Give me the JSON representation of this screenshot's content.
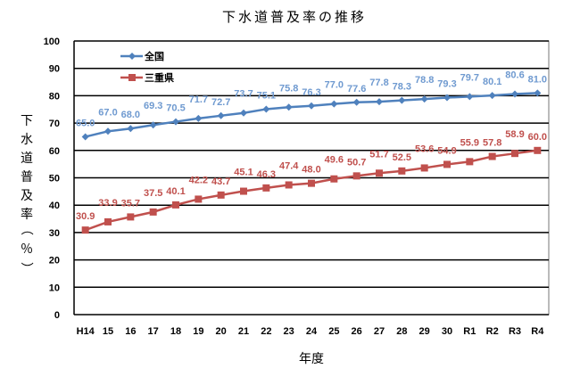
{
  "chart_data": {
    "type": "line",
    "title": "下水道普及率の推移",
    "xlabel": "年度",
    "ylabel": "下水道普及率（％）",
    "ylabel_chars": [
      "下",
      "水",
      "道",
      "普",
      "及",
      "率",
      "（",
      "％",
      "）"
    ],
    "ylim": [
      0,
      100
    ],
    "yticks": [
      0,
      10,
      20,
      30,
      40,
      50,
      60,
      70,
      80,
      90,
      100
    ],
    "grid": true,
    "legend_position": "top-left",
    "categories": [
      "H14",
      "15",
      "16",
      "17",
      "18",
      "19",
      "20",
      "21",
      "22",
      "23",
      "24",
      "25",
      "26",
      "27",
      "28",
      "29",
      "30",
      "R1",
      "R2",
      "R3",
      "R4"
    ],
    "series": [
      {
        "name": "全国",
        "color": "#4f81bd",
        "label_color": "#6f9ad0",
        "marker": "diamond",
        "values": [
          65.0,
          67.0,
          68.0,
          69.3,
          70.5,
          71.7,
          72.7,
          73.7,
          75.1,
          75.8,
          76.3,
          77.0,
          77.6,
          77.8,
          78.3,
          78.8,
          79.3,
          79.7,
          80.1,
          80.6,
          81.0
        ]
      },
      {
        "name": "三重県",
        "color": "#c0504d",
        "label_color": "#c0504d",
        "marker": "square",
        "values": [
          30.9,
          33.9,
          35.7,
          37.5,
          40.1,
          42.2,
          43.7,
          45.1,
          46.3,
          47.4,
          48.0,
          49.6,
          50.7,
          51.7,
          52.5,
          53.6,
          54.9,
          55.9,
          57.8,
          58.9,
          60.0
        ]
      }
    ]
  }
}
